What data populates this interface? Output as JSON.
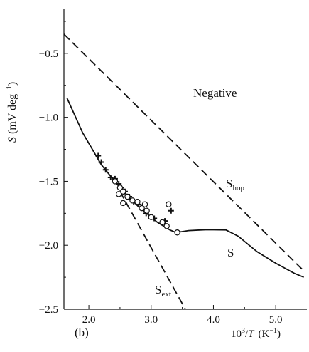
{
  "chart_data": {
    "type": "scatter",
    "panel_label": "(b)",
    "xlabel": {
      "pre": "10",
      "sup": "3",
      "post": "/",
      "italic": "T",
      "unit": "(K",
      "unit_sup": "−1",
      "unit_close": ")"
    },
    "ylabel": {
      "italic": "S",
      "unit": "(mV deg",
      "unit_sup": "−1",
      "unit_close": ")"
    },
    "xlim": [
      1.6,
      5.5
    ],
    "ylim": [
      -2.5,
      -0.15
    ],
    "x_ticks": [
      2.0,
      3.0,
      4.0,
      5.0
    ],
    "x_tick_labels": [
      "2.0",
      "3.0",
      "4.0",
      "5.0"
    ],
    "y_ticks": [
      -0.5,
      -1.0,
      -1.5,
      -2.0,
      -2.5
    ],
    "y_tick_labels": [
      "−0.5",
      "−1.0",
      "−1.5",
      "−2.0",
      "−2.5"
    ],
    "annotations": {
      "region": "Negative",
      "s_hop": {
        "main": "S",
        "sub": "hop"
      },
      "s_ext": {
        "main": "S",
        "sub": "ext"
      },
      "s": "S"
    },
    "series": [
      {
        "style": "dashed-line",
        "label_ref": "s_hop",
        "points": [
          [
            1.6,
            -0.35
          ],
          [
            5.45,
            -2.2
          ]
        ]
      },
      {
        "style": "dashed-line",
        "label_ref": "s_ext",
        "points": [
          [
            2.5,
            -1.58
          ],
          [
            3.55,
            -2.5
          ]
        ]
      },
      {
        "style": "solid-line",
        "label_ref": "s",
        "points": [
          [
            1.65,
            -0.85
          ],
          [
            1.9,
            -1.12
          ],
          [
            2.2,
            -1.37
          ],
          [
            2.5,
            -1.55
          ],
          [
            2.8,
            -1.7
          ],
          [
            3.1,
            -1.82
          ],
          [
            3.3,
            -1.88
          ],
          [
            3.4,
            -1.9
          ],
          [
            3.6,
            -1.885
          ],
          [
            3.9,
            -1.878
          ],
          [
            4.2,
            -1.88
          ],
          [
            4.4,
            -1.93
          ],
          [
            4.7,
            -2.05
          ],
          [
            5.0,
            -2.14
          ],
          [
            5.3,
            -2.22
          ],
          [
            5.45,
            -2.25
          ]
        ]
      },
      {
        "style": "plus-markers",
        "points": [
          [
            2.15,
            -1.3
          ],
          [
            2.2,
            -1.35
          ],
          [
            2.27,
            -1.41
          ],
          [
            2.35,
            -1.47
          ],
          [
            2.42,
            -1.48
          ],
          [
            2.48,
            -1.52
          ],
          [
            2.52,
            -1.55
          ],
          [
            2.58,
            -1.58
          ],
          [
            2.65,
            -1.62
          ],
          [
            2.72,
            -1.66
          ],
          [
            2.8,
            -1.68
          ],
          [
            2.92,
            -1.75
          ],
          [
            3.05,
            -1.79
          ],
          [
            3.22,
            -1.81
          ],
          [
            3.32,
            -1.73
          ]
        ]
      },
      {
        "style": "circle-markers",
        "points": [
          [
            2.42,
            -1.5
          ],
          [
            2.5,
            -1.55
          ],
          [
            2.55,
            -1.58
          ],
          [
            2.48,
            -1.6
          ],
          [
            2.62,
            -1.62
          ],
          [
            2.7,
            -1.65
          ],
          [
            2.55,
            -1.67
          ],
          [
            2.78,
            -1.66
          ],
          [
            2.9,
            -1.68
          ],
          [
            2.85,
            -1.71
          ],
          [
            2.93,
            -1.73
          ],
          [
            3.0,
            -1.78
          ],
          [
            3.18,
            -1.82
          ],
          [
            3.25,
            -1.85
          ],
          [
            3.28,
            -1.68
          ],
          [
            3.42,
            -1.9
          ]
        ]
      }
    ]
  }
}
